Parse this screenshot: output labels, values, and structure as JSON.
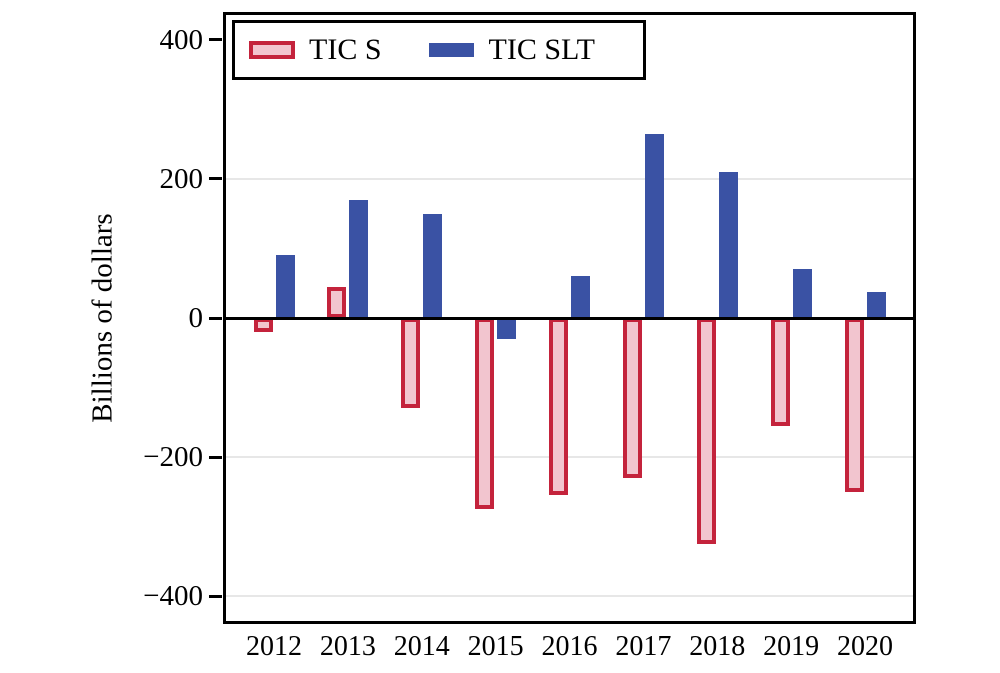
{
  "figure": {
    "background": "#FFFFFF"
  },
  "chart_data": {
    "type": "bar",
    "title": "",
    "categories": [
      "2012",
      "2013",
      "2014",
      "2015",
      "2016",
      "2017",
      "2018",
      "2019",
      "2020"
    ],
    "series": [
      {
        "name": "TIC S",
        "values": [
          -20,
          45,
          -130,
          -275,
          -255,
          -230,
          -325,
          -155,
          -250
        ],
        "fill": "#F2C5CF",
        "border_color": "#C4233C"
      },
      {
        "name": "TIC SLT",
        "values": [
          90,
          170,
          150,
          -30,
          60,
          265,
          210,
          70,
          38
        ],
        "fill": "#3A52A4",
        "border_color": "#3A52A4"
      }
    ],
    "xlabel": "",
    "ylabel": "Billions of dollars",
    "ylim": [
      -440,
      440
    ],
    "yticks": [
      400,
      200,
      0,
      -200,
      -400
    ],
    "gridlines_at": [
      200,
      -200,
      -400
    ],
    "grid": true,
    "legend": {
      "position": "top-left",
      "entries": [
        "TIC S",
        "TIC SLT"
      ]
    }
  },
  "colors": {
    "grid": "#E7E7E7",
    "axis": "#000000",
    "zero_line": "#000000"
  }
}
